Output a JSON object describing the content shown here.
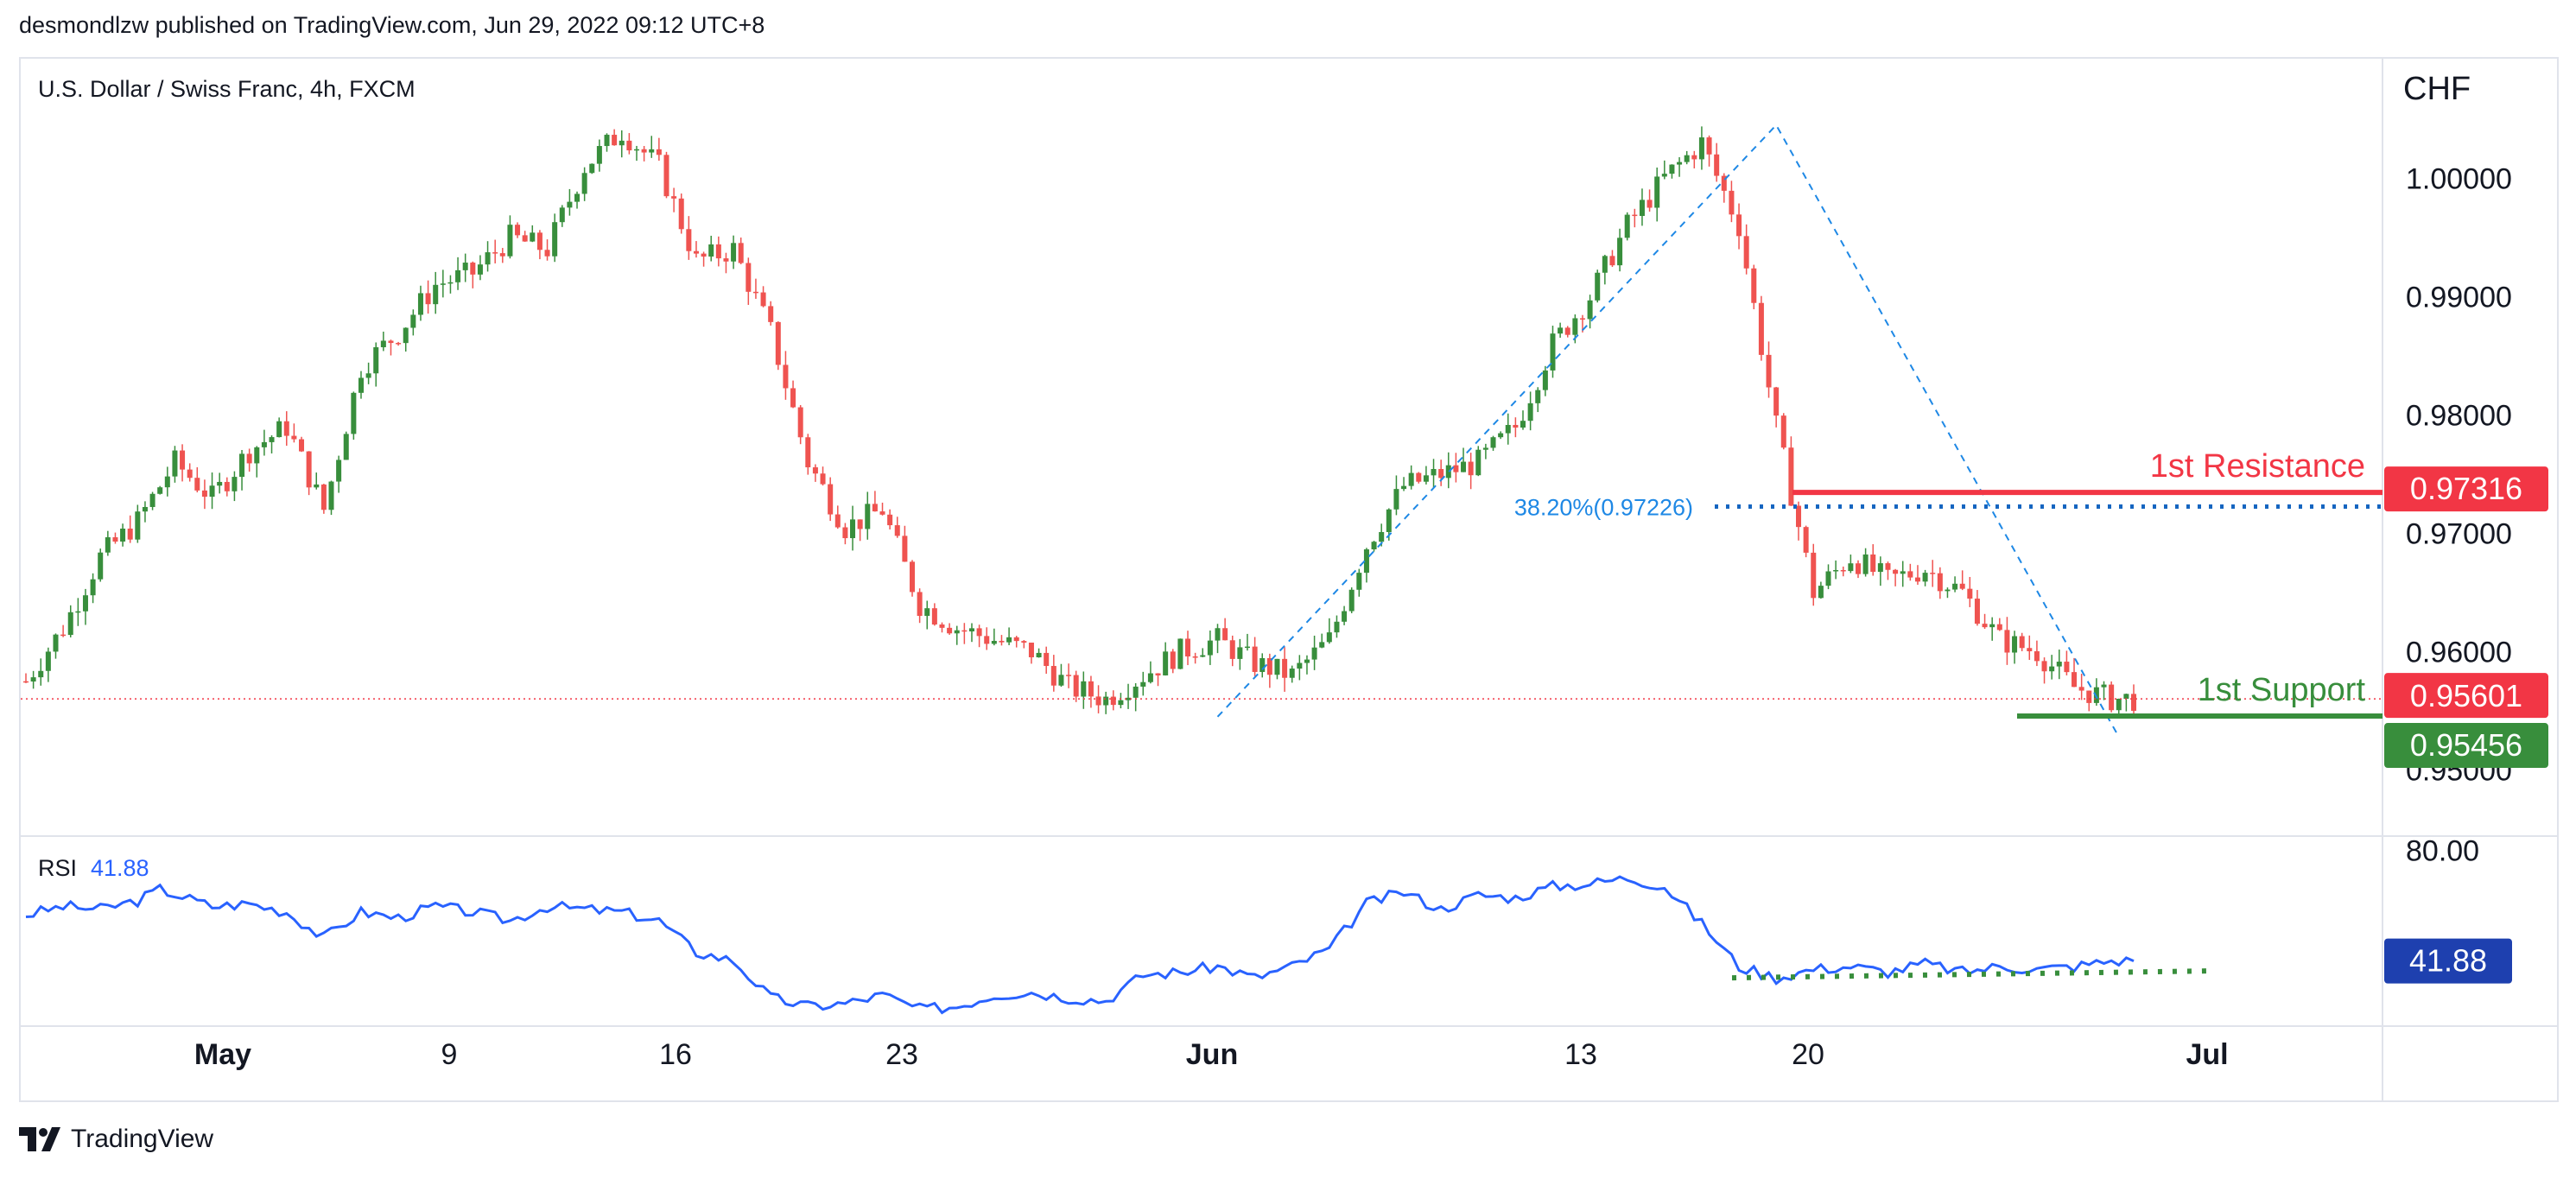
{
  "header": {
    "published": "desmondlzw published on TradingView.com, Jun 29, 2022 09:12 UTC+8"
  },
  "symbol": "U.S. Dollar / Swiss Franc, 4h, FXCM",
  "currency": "CHF",
  "footer": {
    "brand": "TradingView"
  },
  "colors": {
    "up": "#388e3c",
    "down": "#ef5350",
    "rsi": "#2962ff",
    "fib": "#1e88e5",
    "resistance": "#f23645",
    "support": "#388e3c",
    "last_price": "#f23645"
  },
  "chart_data": [
    {
      "type": "candlestick",
      "title": "U.S. Dollar / Swiss Franc, 4h, FXCM",
      "y_unit": "CHF",
      "ylim": [
        0.945,
        1.0085
      ],
      "y_ticks": [
        "1.00000",
        "0.99000",
        "0.98000",
        "0.97000",
        "0.96000",
        "0.95000"
      ],
      "x_ticks": [
        "May",
        "9",
        "16",
        "23",
        "Jun",
        "13",
        "20",
        "Jul"
      ],
      "close_path": [
        [
          0,
          0.9575
        ],
        [
          5,
          0.962
        ],
        [
          10,
          0.968
        ],
        [
          15,
          0.971
        ],
        [
          20,
          0.976
        ],
        [
          25,
          0.973
        ],
        [
          30,
          0.977
        ],
        [
          35,
          0.979
        ],
        [
          40,
          0.972
        ],
        [
          45,
          0.984
        ],
        [
          50,
          0.987
        ],
        [
          55,
          0.991
        ],
        [
          60,
          0.992
        ],
        [
          65,
          0.995
        ],
        [
          70,
          0.994
        ],
        [
          75,
          1.001
        ],
        [
          80,
          1.004
        ],
        [
          85,
          1.001
        ],
        [
          90,
          0.993
        ],
        [
          95,
          0.994
        ],
        [
          100,
          0.987
        ],
        [
          105,
          0.976
        ],
        [
          110,
          0.9705
        ],
        [
          115,
          0.972
        ],
        [
          120,
          0.964
        ],
        [
          125,
          0.962
        ],
        [
          130,
          0.961
        ],
        [
          135,
          0.96
        ],
        [
          140,
          0.957
        ],
        [
          145,
          0.956
        ],
        [
          150,
          0.958
        ],
        [
          155,
          0.96
        ],
        [
          160,
          0.961
        ],
        [
          165,
          0.959
        ],
        [
          170,
          0.958
        ],
        [
          175,
          0.961
        ],
        [
          180,
          0.969
        ],
        [
          185,
          0.974
        ],
        [
          190,
          0.975
        ],
        [
          195,
          0.976
        ],
        [
          200,
          0.979
        ],
        [
          205,
          0.986
        ],
        [
          210,
          0.99
        ],
        [
          215,
          0.996
        ],
        [
          220,
          1.0
        ],
        [
          225,
          1.003
        ],
        [
          230,
          0.996
        ],
        [
          235,
          0.979
        ],
        [
          240,
          0.965
        ],
        [
          245,
          0.968
        ],
        [
          250,
          0.966
        ],
        [
          255,
          0.967
        ],
        [
          260,
          0.965
        ],
        [
          265,
          0.961
        ],
        [
          270,
          0.96
        ],
        [
          275,
          0.957
        ],
        [
          280,
          0.956
        ],
        [
          283,
          0.956
        ]
      ],
      "last_price": "0.95601",
      "annotations": {
        "fib_label": "38.20%(0.97226)",
        "fib_level": 0.97226,
        "resistance_label": "1st Resistance",
        "resistance_value": "0.97316",
        "resistance_level": 0.97316,
        "support_label": "1st Support",
        "support_value": "0.95456",
        "support_level": 0.95456
      }
    },
    {
      "type": "line",
      "series": [
        {
          "name": "RSI"
        }
      ],
      "rsi_current": "41.88",
      "y_ticks": [
        "80.00"
      ],
      "ylim": [
        20,
        85
      ],
      "values": [
        [
          0,
          58
        ],
        [
          5,
          61
        ],
        [
          10,
          60
        ],
        [
          15,
          63
        ],
        [
          18,
          67
        ],
        [
          25,
          61
        ],
        [
          30,
          62
        ],
        [
          35,
          59
        ],
        [
          40,
          50
        ],
        [
          45,
          59
        ],
        [
          50,
          57
        ],
        [
          55,
          61
        ],
        [
          60,
          59
        ],
        [
          65,
          56
        ],
        [
          70,
          61
        ],
        [
          75,
          60
        ],
        [
          80,
          59
        ],
        [
          85,
          56
        ],
        [
          90,
          45
        ],
        [
          95,
          42
        ],
        [
          100,
          29
        ],
        [
          105,
          26
        ],
        [
          110,
          27
        ],
        [
          115,
          30
        ],
        [
          120,
          25
        ],
        [
          125,
          26
        ],
        [
          130,
          30
        ],
        [
          135,
          31
        ],
        [
          140,
          29
        ],
        [
          145,
          28
        ],
        [
          150,
          37
        ],
        [
          155,
          38
        ],
        [
          160,
          40
        ],
        [
          165,
          36
        ],
        [
          170,
          40
        ],
        [
          175,
          46
        ],
        [
          180,
          62
        ],
        [
          185,
          66
        ],
        [
          190,
          60
        ],
        [
          195,
          65
        ],
        [
          200,
          64
        ],
        [
          205,
          68
        ],
        [
          210,
          69
        ],
        [
          215,
          71
        ],
        [
          220,
          68
        ],
        [
          225,
          55
        ],
        [
          230,
          40
        ],
        [
          235,
          36
        ],
        [
          240,
          39
        ],
        [
          245,
          40
        ],
        [
          250,
          38
        ],
        [
          255,
          41
        ],
        [
          260,
          38
        ],
        [
          265,
          40
        ],
        [
          270,
          39
        ],
        [
          275,
          40
        ],
        [
          280,
          42
        ],
        [
          283,
          41.88
        ]
      ],
      "support_line_value": 36
    }
  ]
}
